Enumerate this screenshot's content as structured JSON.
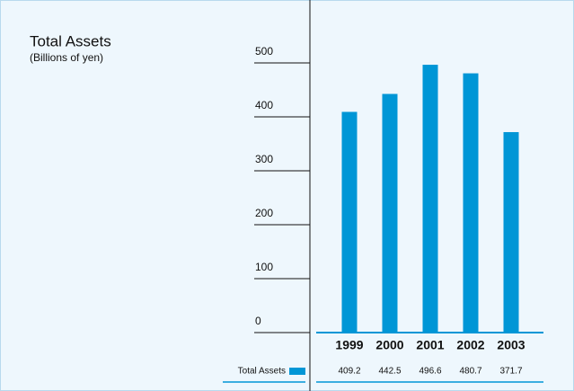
{
  "chart_data": {
    "type": "bar",
    "title": "Total Assets",
    "subtitle": "(Billions of yen)",
    "categories": [
      "1999",
      "2000",
      "2001",
      "2002",
      "2003"
    ],
    "series": [
      {
        "name": "Total Assets",
        "color": "#0096d6",
        "values": [
          409.2,
          442.5,
          496.6,
          480.7,
          371.7
        ]
      }
    ],
    "ylim": [
      0,
      500
    ],
    "yticks": [
      0,
      100,
      200,
      300,
      400,
      500
    ],
    "grid": true
  }
}
